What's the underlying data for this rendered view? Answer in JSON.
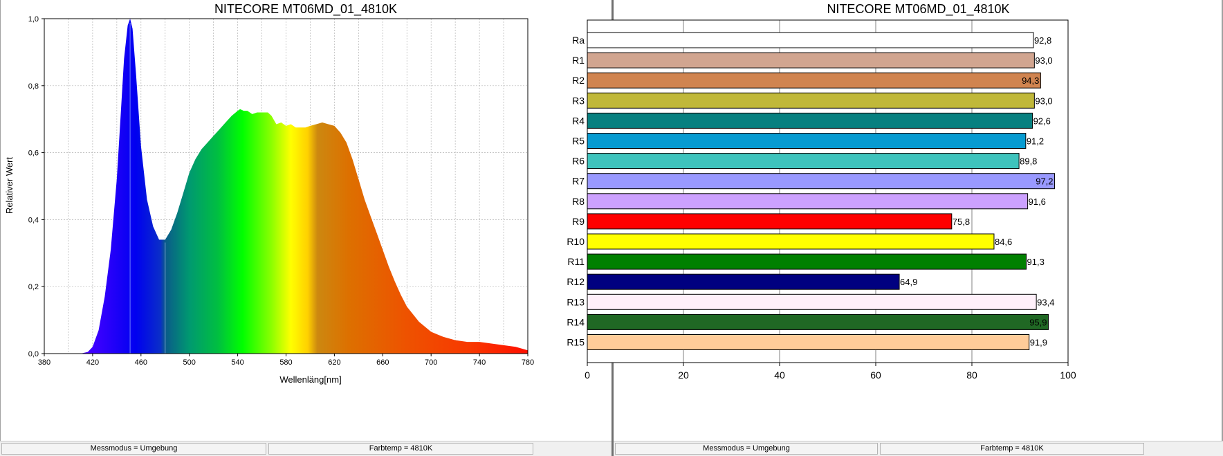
{
  "spectrum": {
    "title": "NITECORE MT06MD_01_4810K",
    "xlabel": "Wellenläng[nm]",
    "ylabel": "Relativer Wert",
    "status": [
      "Messmodus = Umgebung",
      "Farbtemp = 4810K"
    ],
    "chart_data": {
      "type": "area",
      "title": "NITECORE MT06MD_01_4810K",
      "xlabel": "Wellenläng[nm]",
      "ylabel": "Relativer Wert",
      "xlim": [
        380,
        780
      ],
      "ylim": [
        0,
        1
      ],
      "x_ticks": [
        380,
        420,
        460,
        500,
        540,
        580,
        620,
        660,
        700,
        740,
        780
      ],
      "y_ticks": [
        0,
        0.2,
        0.4,
        0.6,
        0.8,
        1
      ],
      "y_tick_labels": [
        "0,0",
        "0,2",
        "0,4",
        "0,6",
        "0,8",
        "1,0"
      ],
      "grid": true,
      "x": [
        380,
        410,
        416,
        420,
        425,
        430,
        435,
        440,
        443,
        446,
        449,
        451,
        453,
        456,
        460,
        465,
        470,
        475,
        480,
        485,
        490,
        495,
        500,
        505,
        510,
        515,
        520,
        525,
        530,
        535,
        540,
        542,
        545,
        548,
        552,
        556,
        560,
        565,
        568,
        572,
        576,
        580,
        584,
        588,
        592,
        596,
        600,
        605,
        610,
        615,
        620,
        625,
        630,
        635,
        640,
        645,
        650,
        655,
        660,
        665,
        670,
        675,
        680,
        690,
        700,
        710,
        720,
        730,
        740,
        750,
        760,
        770,
        780
      ],
      "y": [
        0,
        0,
        0.005,
        0.02,
        0.07,
        0.17,
        0.31,
        0.52,
        0.7,
        0.88,
        0.98,
        1.0,
        0.97,
        0.83,
        0.62,
        0.46,
        0.38,
        0.34,
        0.34,
        0.37,
        0.42,
        0.48,
        0.54,
        0.58,
        0.61,
        0.63,
        0.65,
        0.67,
        0.69,
        0.71,
        0.725,
        0.73,
        0.725,
        0.725,
        0.715,
        0.72,
        0.72,
        0.72,
        0.71,
        0.685,
        0.69,
        0.68,
        0.685,
        0.675,
        0.675,
        0.675,
        0.68,
        0.685,
        0.69,
        0.685,
        0.68,
        0.66,
        0.63,
        0.58,
        0.52,
        0.46,
        0.41,
        0.36,
        0.31,
        0.26,
        0.215,
        0.175,
        0.14,
        0.095,
        0.065,
        0.05,
        0.04,
        0.035,
        0.035,
        0.03,
        0.025,
        0.02,
        0.01
      ]
    }
  },
  "cri": {
    "title": "NITECORE MT06MD_01_4810K",
    "status": [
      "Messmodus = Umgebung",
      "Farbtemp = 4810K"
    ],
    "chart_data": {
      "type": "bar",
      "orientation": "horizontal",
      "title": "NITECORE MT06MD_01_4810K",
      "categories": [
        "Ra",
        "R1",
        "R2",
        "R3",
        "R4",
        "R5",
        "R6",
        "R7",
        "R8",
        "R9",
        "R10",
        "R11",
        "R12",
        "R13",
        "R14",
        "R15"
      ],
      "values": [
        92.8,
        93.0,
        94.3,
        93.0,
        92.6,
        91.2,
        89.8,
        97.2,
        91.6,
        75.8,
        84.6,
        91.3,
        64.9,
        93.4,
        95.9,
        91.9
      ],
      "value_labels": [
        "92,8",
        "93,0",
        "94,3",
        "93,0",
        "92,6",
        "91,2",
        "89,8",
        "97,2",
        "91,6",
        "75,8",
        "84,6",
        "91,3",
        "64,9",
        "93,4",
        "95,9",
        "91,9"
      ],
      "colors": [
        "#ffffff",
        "#d1a590",
        "#d08450",
        "#c0b83a",
        "#078080",
        "#079bd1",
        "#3ec3bd",
        "#9999ff",
        "#cca1ff",
        "#ff0000",
        "#ffff00",
        "#008000",
        "#000080",
        "#fff0fa",
        "#206824",
        "#ffcc99"
      ],
      "xlim": [
        0,
        100
      ],
      "x_ticks": [
        0,
        20,
        40,
        60,
        80,
        100
      ],
      "grid": true
    }
  }
}
